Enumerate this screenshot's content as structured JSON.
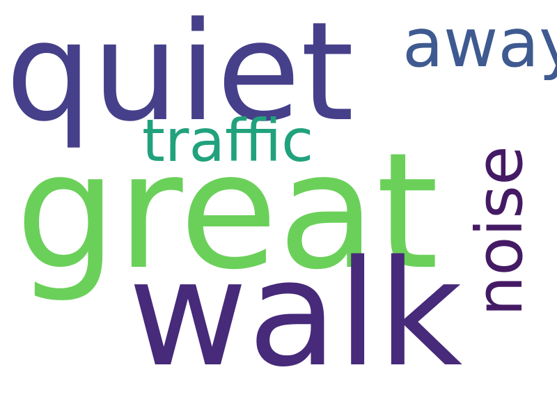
{
  "words": {
    "quiet": {
      "text": "quiet",
      "color": "#46408a"
    },
    "away": {
      "text": "away",
      "color": "#3e5a90"
    },
    "traffic": {
      "text": "traffic",
      "color": "#21a27c"
    },
    "great": {
      "text": "great",
      "color": "#6bd05a"
    },
    "walk": {
      "text": "walk",
      "color": "#472a7a"
    },
    "noise": {
      "text": "noise",
      "color": "#451a64"
    }
  }
}
